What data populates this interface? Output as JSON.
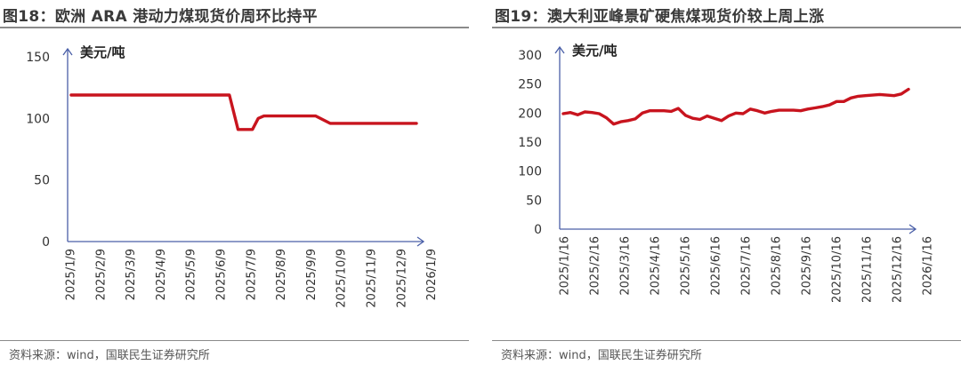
{
  "chart_data": [
    {
      "type": "line",
      "title": "图18：欧洲 ARA 港动力煤现货价周环比持平",
      "unit_label": "美元/吨",
      "source": "资料来源：wind，国联民生证券研究所",
      "ylim": [
        0,
        150
      ],
      "yticks": [
        "150",
        "100",
        "50",
        "0"
      ],
      "ytick_values": [
        150,
        100,
        50,
        0
      ],
      "xticks": [
        "2025/1/9",
        "2025/2/9",
        "2025/3/9",
        "2025/4/9",
        "2025/5/9",
        "2025/6/9",
        "2025/7/9",
        "2025/8/9",
        "2025/9/9",
        "2025/10/9",
        "2025/11/9",
        "2025/12/9",
        "2026/1/9"
      ],
      "color": "#c8141e",
      "x": [
        0,
        1,
        2,
        3,
        4,
        5,
        5.5,
        5.8,
        6.0,
        6.3,
        6.5,
        6.7,
        7,
        7.5,
        8,
        8.5,
        9,
        9.5,
        10,
        10.5,
        11,
        11.5,
        12
      ],
      "values": [
        119,
        119,
        119,
        119,
        119,
        119,
        119,
        91,
        91,
        91,
        100,
        102,
        102,
        102,
        102,
        102,
        96,
        96,
        96,
        96,
        96,
        96,
        96
      ]
    },
    {
      "type": "line",
      "title": "图19：澳大利亚峰景矿硬焦煤现货价较上周上涨",
      "unit_label": "美元/吨",
      "source": "资料来源：wind，国联民生证券研究所",
      "ylim": [
        0,
        300
      ],
      "yticks": [
        "300",
        "250",
        "200",
        "150",
        "100",
        "50",
        "0"
      ],
      "ytick_values": [
        300,
        250,
        200,
        150,
        100,
        50,
        0
      ],
      "xticks": [
        "2025/1/16",
        "2025/2/16",
        "2025/3/16",
        "2025/4/16",
        "2025/5/16",
        "2025/6/16",
        "2025/7/16",
        "2025/8/16",
        "2025/9/16",
        "2025/10/16",
        "2025/11/16",
        "2025/12/16",
        "2026/1/16"
      ],
      "color": "#c8141e",
      "x": [
        0,
        0.25,
        0.5,
        0.75,
        1,
        1.25,
        1.5,
        1.75,
        2,
        2.25,
        2.5,
        2.75,
        3,
        3.25,
        3.5,
        3.75,
        4,
        4.25,
        4.5,
        4.75,
        5,
        5.25,
        5.5,
        5.75,
        6,
        6.25,
        6.5,
        6.75,
        7,
        7.25,
        7.5,
        7.75,
        8,
        8.25,
        8.5,
        8.75,
        9,
        9.25,
        9.5,
        9.75,
        10,
        10.25,
        10.5,
        10.75,
        11,
        11.25,
        11.5,
        11.75,
        12
      ],
      "values": [
        199,
        201,
        197,
        202,
        201,
        199,
        192,
        181,
        185,
        187,
        190,
        200,
        204,
        204,
        204,
        203,
        208,
        196,
        191,
        189,
        195,
        191,
        187,
        195,
        200,
        199,
        207,
        204,
        200,
        203,
        205,
        205,
        205,
        204,
        207,
        209,
        211,
        214,
        220,
        220,
        226,
        229,
        230,
        231,
        232,
        231,
        230,
        233,
        241
      ]
    }
  ]
}
